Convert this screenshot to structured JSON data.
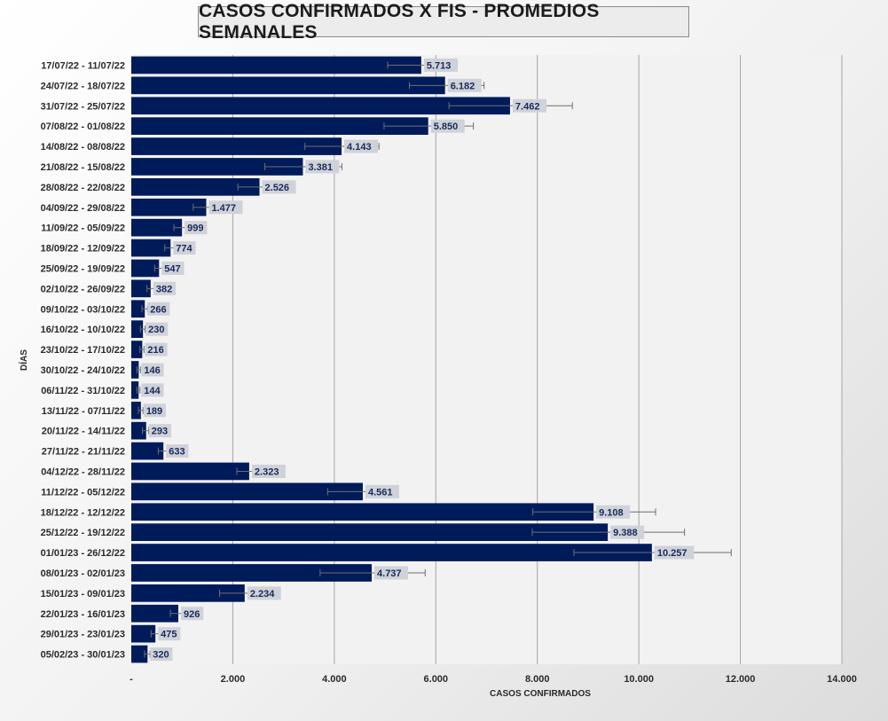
{
  "chart_data": {
    "type": "bar",
    "orientation": "horizontal",
    "title": "CASOS CONFIRMADOS X FIS - PROMEDIOS SEMANALES",
    "xlabel": "CASOS CONFIRMADOS",
    "ylabel": "DÍAS",
    "xlim": [
      0,
      14000
    ],
    "xticks": [
      0,
      2000,
      4000,
      6000,
      8000,
      10000,
      12000,
      14000
    ],
    "xtick_labels": [
      "-",
      "2.000",
      "4.000",
      "6.000",
      "8.000",
      "10.000",
      "12.000",
      "14.000"
    ],
    "grid": true,
    "legend": "none",
    "bar_color": "#001B5A",
    "categories": [
      "17/07/22 - 11/07/22",
      "24/07/22 - 18/07/22",
      "31/07/22 - 25/07/22",
      "07/08/22 - 01/08/22",
      "14/08/22 - 08/08/22",
      "21/08/22 - 15/08/22",
      "28/08/22 - 22/08/22",
      "04/09/22 - 29/08/22",
      "11/09/22 - 05/09/22",
      "18/09/22 - 12/09/22",
      "25/09/22 - 19/09/22",
      "02/10/22 - 26/09/22",
      "09/10/22 - 03/10/22",
      "16/10/22 - 10/10/22",
      "23/10/22 - 17/10/22",
      "30/10/22 - 24/10/22",
      "06/11/22 - 31/10/22",
      "13/11/22 - 07/11/22",
      "20/11/22 - 14/11/22",
      "27/11/22 - 21/11/22",
      "04/12/22 - 28/11/22",
      "11/12/22 - 05/12/22",
      "18/12/22 - 12/12/22",
      "25/12/22 - 19/12/22",
      "01/01/23 - 26/12/22",
      "08/01/23 - 02/01/23",
      "15/01/23 - 09/01/23",
      "22/01/23 - 16/01/23",
      "29/01/23 - 23/01/23",
      "05/02/23 - 30/01/23"
    ],
    "values": [
      5713,
      6182,
      7462,
      5850,
      4143,
      3381,
      2526,
      1477,
      999,
      774,
      547,
      382,
      266,
      230,
      216,
      146,
      144,
      189,
      293,
      633,
      2323,
      4561,
      9108,
      9388,
      10257,
      4737,
      2234,
      926,
      475,
      320
    ],
    "value_labels": [
      "5.713",
      "6.182",
      "7.462",
      "5.850",
      "4.143",
      "3.381",
      "2.526",
      "1.477",
      "999",
      "774",
      "547",
      "382",
      "266",
      "230",
      "216",
      "146",
      "144",
      "189",
      "293",
      "633",
      "2.323",
      "4.561",
      "9.108",
      "9.388",
      "10.257",
      "4.737",
      "2.234",
      "926",
      "475",
      "320"
    ],
    "error_bars": [
      [
        5050,
        6420
      ],
      [
        5480,
        6950
      ],
      [
        6260,
        8690
      ],
      [
        4980,
        6740
      ],
      [
        3420,
        4880
      ],
      [
        2630,
        4150
      ],
      [
        2100,
        2900
      ],
      [
        1220,
        1650
      ],
      [
        840,
        1150
      ],
      [
        660,
        880
      ],
      [
        460,
        620
      ],
      [
        310,
        450
      ],
      [
        210,
        320
      ],
      [
        180,
        270
      ],
      [
        170,
        250
      ],
      [
        110,
        180
      ],
      [
        110,
        170
      ],
      [
        140,
        230
      ],
      [
        220,
        340
      ],
      [
        530,
        720
      ],
      [
        2080,
        2560
      ],
      [
        3870,
        5210
      ],
      [
        7910,
        10330
      ],
      [
        7900,
        10900
      ],
      [
        8720,
        11820
      ],
      [
        3720,
        5790
      ],
      [
        1740,
        2650
      ],
      [
        770,
        1070
      ],
      [
        390,
        550
      ],
      [
        260,
        370
      ]
    ]
  }
}
